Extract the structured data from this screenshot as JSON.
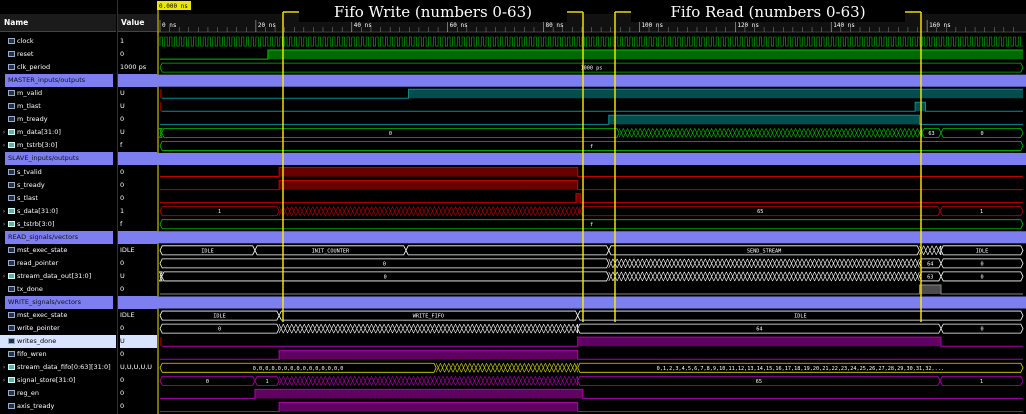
{
  "headers": {
    "name": "Name",
    "value": "Value"
  },
  "cursor": {
    "label": "0.000 ns"
  },
  "timeline": {
    "labels": [
      "0 ns",
      "20 ns",
      "40 ns",
      "60 ns",
      "80 ns",
      "100 ns",
      "120 ns",
      "140 ns",
      "160 ns"
    ],
    "clock_period_label": "1000 ps"
  },
  "annotations": [
    {
      "text": "Fifo Write (numbers 0-63)"
    },
    {
      "text": "Fifo Read (numbers 0-63)"
    }
  ],
  "colors": {
    "green": "#00c000",
    "teal": "#009090",
    "purple": "#b000b0",
    "red": "#c00000",
    "yellow": "#d8d800",
    "group": "#7d7ff0",
    "white": "#ffffff",
    "grey": "#888888"
  },
  "signals": [
    {
      "name": "clock",
      "value": "1",
      "kind": "sig",
      "wave": {
        "type": "clock",
        "color": "green"
      }
    },
    {
      "name": "reset",
      "value": "0",
      "kind": "sig",
      "wave": {
        "type": "bit",
        "color": "green",
        "segs": [
          [
            0,
            0.125,
            0
          ],
          [
            0.125,
            1,
            1
          ]
        ]
      }
    },
    {
      "name": "clk_period",
      "value": "1000 ps",
      "kind": "sig",
      "wave": {
        "type": "bus",
        "color": "green",
        "segs": [
          [
            0,
            1,
            "1000 ps"
          ]
        ]
      }
    },
    {
      "name": "MASTER_inputs/outputs",
      "value": "",
      "kind": "group"
    },
    {
      "name": "m_valid",
      "value": "U",
      "kind": "sig",
      "wave": {
        "type": "bit",
        "color": "teal",
        "segs": [
          [
            0,
            0.002,
            "U"
          ],
          [
            0.002,
            0.288,
            0
          ],
          [
            0.288,
            1,
            1
          ]
        ]
      }
    },
    {
      "name": "m_tlast",
      "value": "U",
      "kind": "sig",
      "wave": {
        "type": "bit",
        "color": "teal",
        "segs": [
          [
            0,
            0.002,
            "U"
          ],
          [
            0.002,
            0.875,
            0
          ],
          [
            0.875,
            0.887,
            1
          ],
          [
            0.887,
            1,
            0
          ]
        ]
      }
    },
    {
      "name": "m_tready",
      "value": "0",
      "kind": "sig",
      "wave": {
        "type": "bit",
        "color": "teal",
        "segs": [
          [
            0,
            0.52,
            0
          ],
          [
            0.52,
            0.88,
            1
          ],
          [
            0.88,
            1,
            0
          ]
        ]
      }
    },
    {
      "name": "m_data[31:0]",
      "value": "U",
      "kind": "bus",
      "wave": {
        "type": "bus",
        "color": "green",
        "segs": [
          [
            0,
            0.002,
            ""
          ],
          [
            0.002,
            0.532,
            "0"
          ],
          [
            0.532,
            0.883,
            "#"
          ],
          [
            0.883,
            0.905,
            "63"
          ],
          [
            0.905,
            1,
            "0"
          ]
        ]
      }
    },
    {
      "name": "m_tstrb[3:0]",
      "value": "f",
      "kind": "bus",
      "wave": {
        "type": "bus",
        "color": "green",
        "segs": [
          [
            0,
            1,
            "f"
          ]
        ]
      }
    },
    {
      "name": "SLAVE_inputs/outputs",
      "value": "",
      "kind": "group"
    },
    {
      "name": "s_tvalid",
      "value": "0",
      "kind": "sig",
      "wave": {
        "type": "bit",
        "color": "red",
        "segs": [
          [
            0,
            0.138,
            0
          ],
          [
            0.138,
            0.484,
            1
          ],
          [
            0.484,
            1,
            0
          ]
        ]
      }
    },
    {
      "name": "s_tready",
      "value": "0",
      "kind": "sig",
      "wave": {
        "type": "bit",
        "color": "red",
        "segs": [
          [
            0,
            0.138,
            0
          ],
          [
            0.138,
            0.484,
            1
          ],
          [
            0.484,
            1,
            0
          ]
        ]
      }
    },
    {
      "name": "s_tlast",
      "value": "0",
      "kind": "sig",
      "wave": {
        "type": "bit",
        "color": "red",
        "segs": [
          [
            0,
            0.482,
            0
          ],
          [
            0.482,
            0.487,
            1
          ],
          [
            0.487,
            1,
            0
          ]
        ]
      }
    },
    {
      "name": "s_data[31:0]",
      "value": "1",
      "kind": "bus",
      "wave": {
        "type": "bus",
        "color": "red",
        "segs": [
          [
            0,
            0.138,
            "1"
          ],
          [
            0.138,
            0.487,
            "#"
          ],
          [
            0.487,
            0.904,
            "65"
          ],
          [
            0.904,
            1,
            "1"
          ]
        ]
      }
    },
    {
      "name": "s_tstrb[3:0]",
      "value": "f",
      "kind": "bus",
      "wave": {
        "type": "bus",
        "color": "green",
        "segs": [
          [
            0,
            1,
            "f"
          ]
        ]
      }
    },
    {
      "name": "READ_signals/vectors",
      "value": "",
      "kind": "group"
    },
    {
      "name": "mst_exec_state",
      "value": "IDLE",
      "kind": "sig",
      "wave": {
        "type": "bus",
        "color": "white",
        "segs": [
          [
            0,
            0.11,
            "IDLE"
          ],
          [
            0.11,
            0.285,
            "INIT_COUNTER"
          ],
          [
            0.285,
            0.52,
            ""
          ],
          [
            0.52,
            0.88,
            "SEND_STREAM"
          ],
          [
            0.88,
            0.905,
            "#"
          ],
          [
            0.905,
            1,
            "IDLE"
          ]
        ]
      }
    },
    {
      "name": "read_pointer",
      "value": "0",
      "kind": "sig",
      "wave": {
        "type": "bus",
        "color": "white",
        "segs": [
          [
            0,
            0.52,
            "0"
          ],
          [
            0.52,
            0.88,
            "#"
          ],
          [
            0.88,
            0.905,
            "64"
          ],
          [
            0.905,
            1,
            "0"
          ]
        ]
      }
    },
    {
      "name": "stream_data_out[31:0]",
      "value": "U",
      "kind": "bus",
      "wave": {
        "type": "bus",
        "color": "white",
        "segs": [
          [
            0,
            0.002,
            ""
          ],
          [
            0.002,
            0.52,
            "0"
          ],
          [
            0.52,
            0.88,
            "#"
          ],
          [
            0.88,
            0.905,
            "63"
          ],
          [
            0.905,
            1,
            "0"
          ]
        ]
      }
    },
    {
      "name": "tx_done",
      "value": "0",
      "kind": "sig",
      "wave": {
        "type": "bit",
        "color": "grey",
        "segs": [
          [
            0,
            0.88,
            0
          ],
          [
            0.88,
            0.905,
            1
          ],
          [
            0.905,
            1,
            0
          ]
        ]
      }
    },
    {
      "name": "WRITE_signals/vectors",
      "value": "",
      "kind": "group"
    },
    {
      "name": "mst_exec_state",
      "value": "IDLE",
      "kind": "sig",
      "wave": {
        "type": "bus",
        "color": "white",
        "segs": [
          [
            0,
            0.138,
            "IDLE"
          ],
          [
            0.138,
            0.484,
            "WRITE_FIFO"
          ],
          [
            0.484,
            1,
            "IDLE"
          ]
        ]
      }
    },
    {
      "name": "write_pointer",
      "value": "0",
      "kind": "sig",
      "wave": {
        "type": "bus",
        "color": "white",
        "segs": [
          [
            0,
            0.138,
            "0"
          ],
          [
            0.138,
            0.484,
            "#"
          ],
          [
            0.484,
            0.905,
            "64"
          ],
          [
            0.905,
            1,
            "0"
          ]
        ]
      }
    },
    {
      "name": "writes_done",
      "value": "U",
      "kind": "sig",
      "selected": true,
      "wave": {
        "type": "bit",
        "color": "purple",
        "segs": [
          [
            0,
            0.002,
            "U"
          ],
          [
            0.002,
            0.484,
            0
          ],
          [
            0.484,
            0.905,
            1
          ],
          [
            0.905,
            1,
            0
          ]
        ]
      }
    },
    {
      "name": "fifo_wren",
      "value": "0",
      "kind": "sig",
      "wave": {
        "type": "bit",
        "color": "purple",
        "segs": [
          [
            0,
            0.138,
            0
          ],
          [
            0.138,
            0.484,
            1
          ],
          [
            0.484,
            1,
            0
          ]
        ]
      }
    },
    {
      "name": "stream_data_fifo[0:63][31:0]",
      "value": "U,U,U,U,U",
      "kind": "bus",
      "wave": {
        "type": "bus",
        "color": "yellow",
        "segs": [
          [
            0,
            0.32,
            "0,0,0,0,0,0,0,0,0,0,0,0,0,0,0"
          ],
          [
            0.32,
            0.484,
            "#"
          ],
          [
            0.484,
            1,
            "0,1,2,3,4,5,6,7,8,9,10,11,12,13,14,15,16,17,18,19,20,21,22,23,24,25,26,27,28,29,30,31,32,..."
          ]
        ]
      }
    },
    {
      "name": "signal_store[31:0]",
      "value": "0",
      "kind": "bus",
      "wave": {
        "type": "bus",
        "color": "purple",
        "segs": [
          [
            0,
            0.11,
            "0"
          ],
          [
            0.11,
            0.138,
            "1"
          ],
          [
            0.138,
            0.484,
            "#"
          ],
          [
            0.484,
            0.904,
            "65"
          ],
          [
            0.904,
            1,
            "1"
          ]
        ]
      }
    },
    {
      "name": "reg_en",
      "value": "0",
      "kind": "sig",
      "wave": {
        "type": "bit",
        "color": "purple",
        "segs": [
          [
            0,
            0.11,
            0
          ],
          [
            0.11,
            0.49,
            1
          ],
          [
            0.49,
            1,
            0
          ]
        ]
      }
    },
    {
      "name": "axis_tready",
      "value": "0",
      "kind": "sig",
      "wave": {
        "type": "bit",
        "color": "purple",
        "segs": [
          [
            0,
            0.138,
            0
          ],
          [
            0.138,
            0.484,
            1
          ],
          [
            0.484,
            1,
            0
          ]
        ]
      }
    }
  ]
}
